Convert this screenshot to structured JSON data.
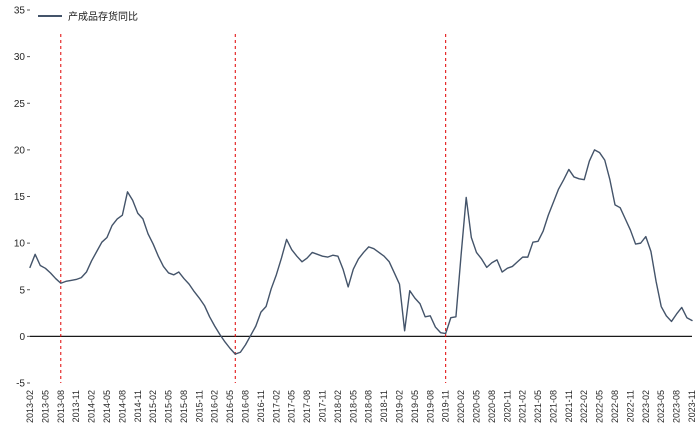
{
  "chart_data": {
    "type": "line",
    "title": "",
    "legend_position": "top-left",
    "grid": false,
    "zero_line": true,
    "ylim": [
      -5,
      35
    ],
    "y_ticks": [
      -5,
      0,
      5,
      10,
      15,
      20,
      25,
      30,
      35
    ],
    "x_tick_every": 3,
    "x": [
      "2013-02",
      "2013-03",
      "2013-04",
      "2013-05",
      "2013-06",
      "2013-07",
      "2013-08",
      "2013-09",
      "2013-10",
      "2013-11",
      "2013-12",
      "2014-01",
      "2014-02",
      "2014-03",
      "2014-04",
      "2014-05",
      "2014-06",
      "2014-07",
      "2014-08",
      "2014-09",
      "2014-10",
      "2014-11",
      "2014-12",
      "2015-01",
      "2015-02",
      "2015-03",
      "2015-04",
      "2015-05",
      "2015-06",
      "2015-07",
      "2015-08",
      "2015-09",
      "2015-10",
      "2015-11",
      "2015-12",
      "2016-01",
      "2016-02",
      "2016-03",
      "2016-04",
      "2016-05",
      "2016-06",
      "2016-07",
      "2016-08",
      "2016-09",
      "2016-10",
      "2016-11",
      "2016-12",
      "2017-01",
      "2017-02",
      "2017-03",
      "2017-04",
      "2017-05",
      "2017-06",
      "2017-07",
      "2017-08",
      "2017-09",
      "2017-10",
      "2017-11",
      "2017-12",
      "2018-01",
      "2018-02",
      "2018-03",
      "2018-04",
      "2018-05",
      "2018-06",
      "2018-07",
      "2018-08",
      "2018-09",
      "2018-10",
      "2018-11",
      "2018-12",
      "2019-01",
      "2019-02",
      "2019-03",
      "2019-04",
      "2019-05",
      "2019-06",
      "2019-07",
      "2019-08",
      "2019-09",
      "2019-10",
      "2019-11",
      "2019-12",
      "2020-01",
      "2020-02",
      "2020-03",
      "2020-04",
      "2020-05",
      "2020-06",
      "2020-07",
      "2020-08",
      "2020-09",
      "2020-10",
      "2020-11",
      "2020-12",
      "2021-01",
      "2021-02",
      "2021-03",
      "2021-04",
      "2021-05",
      "2021-06",
      "2021-07",
      "2021-08",
      "2021-09",
      "2021-10",
      "2021-11",
      "2021-12",
      "2022-01",
      "2022-02",
      "2022-03",
      "2022-04",
      "2022-05",
      "2022-06",
      "2022-07",
      "2022-08",
      "2022-09",
      "2022-10",
      "2022-11",
      "2022-12",
      "2023-01",
      "2023-02",
      "2023-03",
      "2023-04",
      "2023-05",
      "2023-06",
      "2023-07",
      "2023-08",
      "2023-09",
      "2023-10",
      "2023-11"
    ],
    "series": [
      {
        "name": "产成品存货同比",
        "color": "#44546A",
        "values": [
          7.4,
          8.8,
          7.6,
          7.3,
          6.8,
          6.2,
          5.7,
          5.9,
          6.0,
          6.1,
          6.3,
          6.9,
          8.1,
          9.1,
          10.1,
          10.6,
          11.9,
          12.6,
          13.0,
          15.5,
          14.6,
          13.2,
          12.6,
          11.0,
          9.9,
          8.6,
          7.5,
          6.8,
          6.6,
          6.9,
          6.2,
          5.6,
          4.8,
          4.1,
          3.3,
          2.1,
          1.1,
          0.2,
          -0.6,
          -1.3,
          -1.9,
          -1.7,
          -0.9,
          0.1,
          1.1,
          2.6,
          3.2,
          5.1,
          6.6,
          8.4,
          10.4,
          9.3,
          8.6,
          8.0,
          8.4,
          9.0,
          8.8,
          8.6,
          8.5,
          8.7,
          8.6,
          7.2,
          5.3,
          7.2,
          8.3,
          9.0,
          9.6,
          9.4,
          9.0,
          8.6,
          8.0,
          6.8,
          5.6,
          0.6,
          4.9,
          4.1,
          3.5,
          2.1,
          2.2,
          1.0,
          0.4,
          0.3,
          2.0,
          2.1,
          8.7,
          14.9,
          10.6,
          9.0,
          8.3,
          7.4,
          7.9,
          8.2,
          6.9,
          7.3,
          7.5,
          8.0,
          8.5,
          8.5,
          10.1,
          10.2,
          11.3,
          13.0,
          14.4,
          15.8,
          16.8,
          17.9,
          17.1,
          16.9,
          16.8,
          18.8,
          20.0,
          19.7,
          18.9,
          16.8,
          14.1,
          13.8,
          12.6,
          11.4,
          9.9,
          10.0,
          10.7,
          9.1,
          5.9,
          3.2,
          2.2,
          1.6,
          2.4,
          3.1,
          2.0,
          1.7
        ]
      }
    ],
    "vlines": [
      {
        "x": "2013-08",
        "color": "#E00000",
        "style": "dashed"
      },
      {
        "x": "2016-06",
        "color": "#E00000",
        "style": "dashed"
      },
      {
        "x": "2019-11",
        "color": "#E00000",
        "style": "dashed"
      }
    ]
  }
}
